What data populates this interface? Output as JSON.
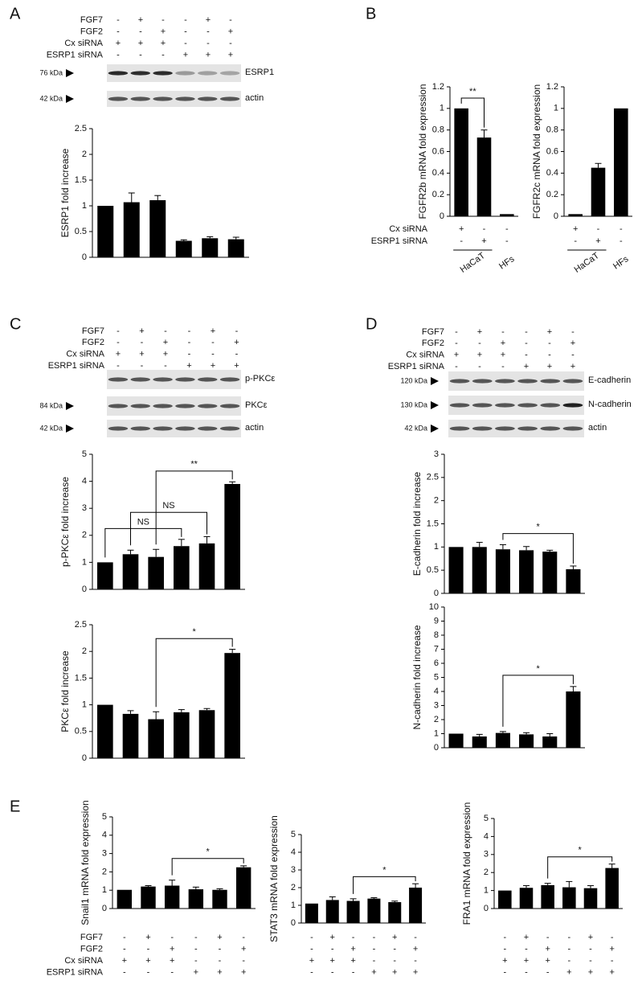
{
  "panel_letters": [
    "A",
    "B",
    "C",
    "D",
    "E"
  ],
  "treatment_tables": [
    {
      "rows": [
        {
          "label": "FGF7",
          "signs": [
            "-",
            "+",
            "-",
            "-",
            "+",
            "-"
          ]
        },
        {
          "label": "FGF2",
          "signs": [
            "-",
            "-",
            "+",
            "-",
            "-",
            "+"
          ]
        },
        {
          "label": "Cx siRNA",
          "signs": [
            "+",
            "+",
            "+",
            "-",
            "-",
            "-"
          ]
        },
        {
          "label": "ESRP1 siRNA",
          "signs": [
            "-",
            "-",
            "-",
            "+",
            "+",
            "+"
          ]
        }
      ]
    },
    {
      "rows": [
        {
          "label": "Cx siRNA",
          "signs": [
            "+",
            "-",
            "-"
          ]
        },
        {
          "label": "ESRP1 siRNA",
          "signs": [
            "-",
            "+",
            "-"
          ]
        }
      ]
    },
    {
      "rows": [
        {
          "signs": [
            "+",
            "-",
            "-"
          ]
        },
        {
          "signs": [
            "-",
            "+",
            "-"
          ]
        }
      ]
    },
    {
      "rows": [
        {
          "label": "FGF7",
          "signs": [
            "-",
            "+",
            "-",
            "-",
            "+",
            "-"
          ]
        },
        {
          "label": "FGF2",
          "signs": [
            "-",
            "-",
            "+",
            "-",
            "-",
            "+"
          ]
        },
        {
          "label": "Cx siRNA",
          "signs": [
            "+",
            "+",
            "+",
            "-",
            "-",
            "-"
          ]
        },
        {
          "label": "ESRP1 siRNA",
          "signs": [
            "-",
            "-",
            "-",
            "+",
            "+",
            "+"
          ]
        }
      ]
    },
    {
      "rows": [
        {
          "label": "FGF7",
          "signs": [
            "-",
            "+",
            "-",
            "-",
            "+",
            "-"
          ]
        },
        {
          "label": "FGF2",
          "signs": [
            "-",
            "-",
            "+",
            "-",
            "-",
            "+"
          ]
        },
        {
          "label": "Cx siRNA",
          "signs": [
            "+",
            "+",
            "+",
            "-",
            "-",
            "-"
          ]
        },
        {
          "label": "ESRP1 siRNA",
          "signs": [
            "-",
            "-",
            "-",
            "+",
            "+",
            "+"
          ]
        }
      ]
    },
    {
      "rows": [
        {
          "label": "FGF7",
          "signs": [
            "-",
            "+",
            "-",
            "-",
            "+",
            "-"
          ]
        },
        {
          "label": "FGF2",
          "signs": [
            "-",
            "-",
            "+",
            "-",
            "-",
            "+"
          ]
        },
        {
          "label": "Cx siRNA",
          "signs": [
            "+",
            "+",
            "+",
            "-",
            "-",
            "-"
          ]
        },
        {
          "label": "ESRP1 siRNA",
          "signs": [
            "-",
            "-",
            "-",
            "+",
            "+",
            "+"
          ]
        }
      ]
    },
    {
      "rows": [
        {
          "signs": [
            "-",
            "+",
            "-",
            "-",
            "+",
            "-"
          ]
        },
        {
          "signs": [
            "-",
            "-",
            "+",
            "-",
            "-",
            "+"
          ]
        },
        {
          "signs": [
            "+",
            "+",
            "+",
            "-",
            "-",
            "-"
          ]
        },
        {
          "signs": [
            "-",
            "-",
            "-",
            "+",
            "+",
            "+"
          ]
        }
      ]
    },
    {
      "rows": [
        {
          "signs": [
            "-",
            "+",
            "-",
            "-",
            "+",
            "-"
          ]
        },
        {
          "signs": [
            "-",
            "-",
            "+",
            "-",
            "-",
            "+"
          ]
        },
        {
          "signs": [
            "+",
            "+",
            "+",
            "-",
            "-",
            "-"
          ]
        },
        {
          "signs": [
            "-",
            "-",
            "-",
            "+",
            "+",
            "+"
          ]
        }
      ]
    }
  ],
  "blots": [
    {
      "rows": [
        {
          "kda": "76 kDa",
          "label": "ESRP1"
        },
        {
          "kda": "42 kDa",
          "label": "actin"
        }
      ]
    },
    {
      "rows": [
        {
          "label": "p-PKCε"
        },
        {
          "kda": "84 kDa",
          "label": "PKCε"
        },
        {
          "kda": "42 kDa",
          "label": "actin"
        }
      ]
    },
    {
      "rows": [
        {
          "kda": "120 kDa",
          "label": "E-cadherin"
        },
        {
          "kda": "130 kDa",
          "label": "N-cadherin"
        },
        {
          "kda": "42 kDa",
          "label": "actin"
        }
      ]
    }
  ],
  "chart_data": [
    {
      "type": "bar",
      "y_label": "ESRP1 fold increase",
      "color": "#000000",
      "categories": [
        null,
        null,
        null,
        null,
        null,
        null
      ],
      "values": [
        1.0,
        1.07,
        1.11,
        0.32,
        0.37,
        0.35
      ],
      "errors": [
        null,
        0.18,
        0.09,
        0.02,
        0.03,
        0.04
      ],
      "ylim": [
        0,
        2.5
      ],
      "yticks": [
        0,
        0.5,
        1,
        1.5,
        2,
        2.5
      ],
      "brackets": []
    },
    {
      "type": "bar",
      "y_label": "FGFR2b mRNA fold expression",
      "color": "#000000",
      "categories": [
        null,
        null,
        null
      ],
      "values": [
        1.0,
        0.73,
        0.02
      ],
      "errors": [
        null,
        0.07,
        null
      ],
      "ylim": [
        0,
        1.2
      ],
      "yticks": [
        0,
        0.2,
        0.4,
        0.6,
        0.8,
        1,
        1.2
      ],
      "brackets": [
        {
          "from": 0,
          "to": 1,
          "label": "**"
        }
      ],
      "x_groups": [
        {
          "label": "HaCaT",
          "from": 0,
          "to": 1
        },
        {
          "label": "HFs",
          "from": 2,
          "to": 2
        }
      ]
    },
    {
      "type": "bar",
      "y_label": "FGFR2c mRNA fold expression",
      "color": "#000000",
      "categories": [
        null,
        null,
        null
      ],
      "values": [
        0.02,
        0.45,
        1.0
      ],
      "errors": [
        null,
        0.04,
        null
      ],
      "ylim": [
        0,
        1.2
      ],
      "yticks": [
        0,
        0.2,
        0.4,
        0.6,
        0.8,
        1,
        1.2
      ],
      "brackets": [],
      "x_groups": [
        {
          "label": "HaCaT",
          "from": 0,
          "to": 1
        },
        {
          "label": "HFs",
          "from": 2,
          "to": 2
        }
      ]
    },
    {
      "type": "bar",
      "y_label": "p-PKCε fold increase",
      "color": "#000000",
      "categories": [
        null,
        null,
        null,
        null,
        null,
        null
      ],
      "values": [
        1.0,
        1.3,
        1.2,
        1.6,
        1.7,
        3.9
      ],
      "errors": [
        null,
        0.15,
        0.28,
        0.25,
        0.25,
        0.08
      ],
      "ylim": [
        0,
        5
      ],
      "yticks": [
        0,
        1,
        2,
        3,
        4,
        5
      ],
      "brackets": [
        {
          "from": 0,
          "to": 3,
          "label": "NS"
        },
        {
          "from": 1,
          "to": 4,
          "label": "NS"
        },
        {
          "from": 2,
          "to": 5,
          "label": "**"
        }
      ]
    },
    {
      "type": "bar",
      "y_label": "PKCε fold increase",
      "color": "#000000",
      "categories": [
        null,
        null,
        null,
        null,
        null,
        null
      ],
      "values": [
        1.0,
        0.83,
        0.73,
        0.86,
        0.9,
        1.97
      ],
      "errors": [
        null,
        0.06,
        0.14,
        0.05,
        0.03,
        0.07
      ],
      "ylim": [
        0,
        2.5
      ],
      "yticks": [
        0,
        0.5,
        1,
        1.5,
        2,
        2.5
      ],
      "brackets": [
        {
          "from": 2,
          "to": 5,
          "label": "*"
        }
      ]
    },
    {
      "type": "bar",
      "y_label": "E-cadherin fold increase",
      "color": "#000000",
      "categories": [
        null,
        null,
        null,
        null,
        null,
        null
      ],
      "values": [
        1.0,
        1.0,
        0.95,
        0.93,
        0.9,
        0.52
      ],
      "errors": [
        null,
        0.1,
        0.1,
        0.08,
        0.03,
        0.07
      ],
      "ylim": [
        0,
        3
      ],
      "yticks": [
        0,
        0.5,
        1,
        1.5,
        2,
        2.5,
        3
      ],
      "brackets": [
        {
          "from": 2,
          "to": 5,
          "label": "*"
        }
      ]
    },
    {
      "type": "bar",
      "y_label": "N-cadherin fold increase",
      "color": "#000000",
      "categories": [
        null,
        null,
        null,
        null,
        null,
        null
      ],
      "values": [
        1.0,
        0.8,
        1.05,
        0.95,
        0.8,
        4.0
      ],
      "errors": [
        null,
        0.15,
        0.1,
        0.12,
        0.2,
        0.35
      ],
      "ylim": [
        0,
        10
      ],
      "yticks": [
        0,
        1,
        2,
        3,
        4,
        5,
        6,
        7,
        8,
        9,
        10
      ],
      "brackets": [
        {
          "from": 2,
          "to": 5,
          "label": "*"
        }
      ]
    },
    {
      "type": "bar",
      "y_label": "Snail1 mRNA fold expression",
      "color": "#000000",
      "categories": [
        null,
        null,
        null,
        null,
        null,
        null
      ],
      "values": [
        1.02,
        1.2,
        1.25,
        1.05,
        1.02,
        2.25
      ],
      "errors": [
        null,
        0.05,
        0.3,
        0.12,
        0.06,
        0.08
      ],
      "ylim": [
        0,
        5
      ],
      "yticks": [
        0,
        1,
        2,
        3,
        4,
        5
      ],
      "brackets": [
        {
          "from": 2,
          "to": 5,
          "label": "*"
        }
      ]
    },
    {
      "type": "bar",
      "y_label": "STAT3 mRNA fold expression",
      "color": "#000000",
      "categories": [
        null,
        null,
        null,
        null,
        null,
        null
      ],
      "values": [
        1.1,
        1.3,
        1.25,
        1.38,
        1.18,
        2.0
      ],
      "errors": [
        null,
        0.18,
        0.12,
        0.05,
        0.06,
        0.22
      ],
      "ylim": [
        0,
        5
      ],
      "yticks": [
        0,
        1,
        2,
        3,
        4,
        5
      ],
      "brackets": [
        {
          "from": 2,
          "to": 5,
          "label": "*"
        }
      ]
    },
    {
      "type": "bar",
      "y_label": "FRA1 mRNA fold expression",
      "color": "#000000",
      "categories": [
        null,
        null,
        null,
        null,
        null,
        null
      ],
      "values": [
        1.0,
        1.15,
        1.3,
        1.18,
        1.13,
        2.25
      ],
      "errors": [
        null,
        0.12,
        0.1,
        0.32,
        0.14,
        0.22
      ],
      "ylim": [
        0,
        5
      ],
      "yticks": [
        0,
        1,
        2,
        3,
        4,
        5
      ],
      "brackets": [
        {
          "from": 2,
          "to": 5,
          "label": "*"
        }
      ]
    }
  ]
}
